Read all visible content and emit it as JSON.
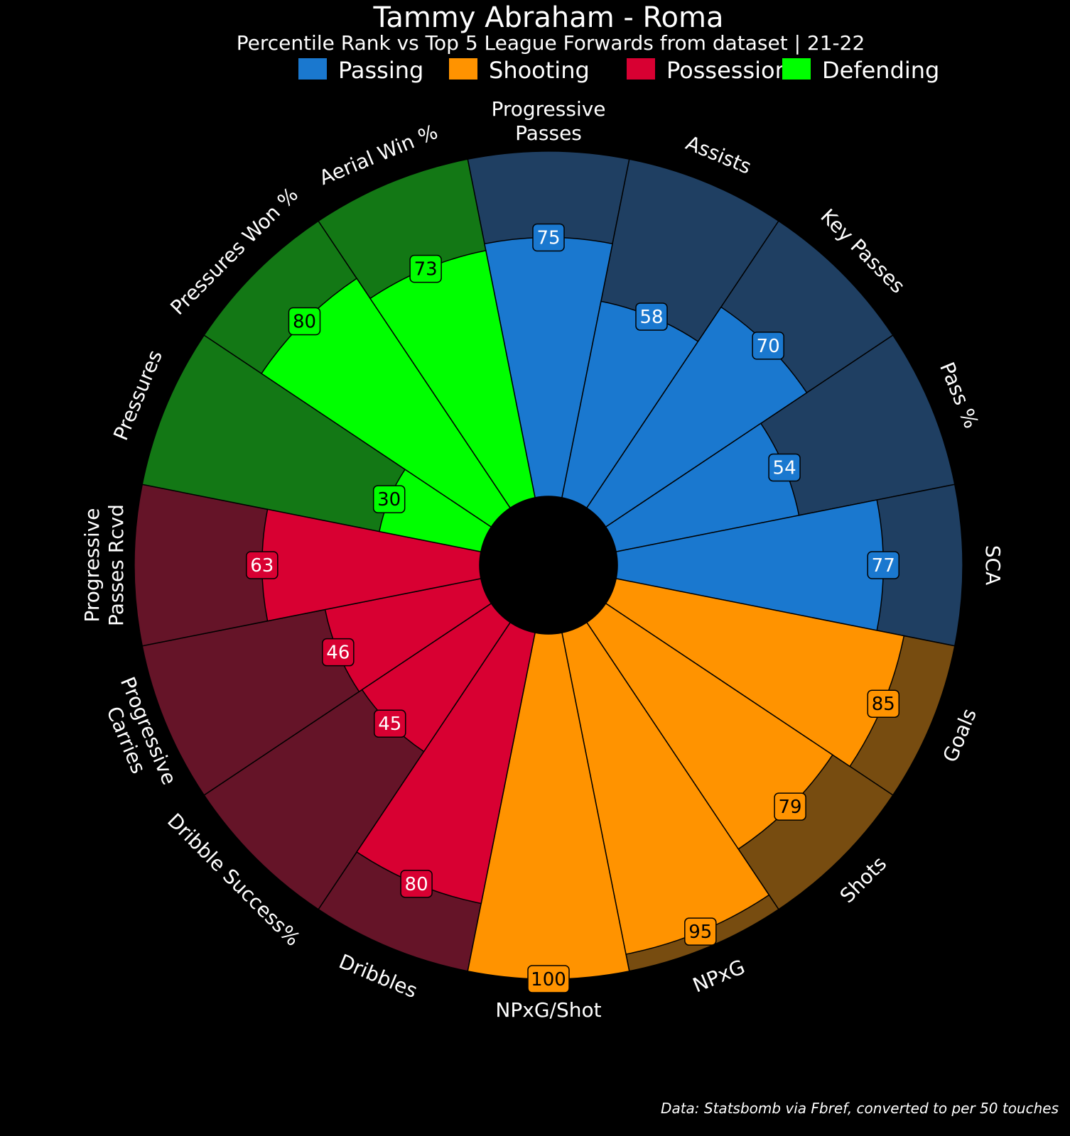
{
  "chart_data": {
    "type": "polar-bar",
    "title": "Tammy Abraham - Roma",
    "subtitle": "Percentile Rank vs Top 5 League Forwards from dataset | 21-22",
    "caption": "Data: Statsbomb via Fbref, converted to per 50 touches",
    "rlim": [
      0,
      100
    ],
    "groups": [
      {
        "name": "Passing",
        "color": "#1a78cf",
        "bg_color": "#1f3f62",
        "text_color": "#ffffff"
      },
      {
        "name": "Shooting",
        "color": "#ff9300",
        "bg_color": "#774c10",
        "text_color": "#000000"
      },
      {
        "name": "Possession",
        "color": "#d80032",
        "bg_color": "#651428",
        "text_color": "#ffffff"
      },
      {
        "name": "Defending",
        "color": "#00ff00",
        "bg_color": "#137815",
        "text_color": "#000000"
      }
    ],
    "metrics": [
      {
        "label": [
          "Progressive",
          "Passes"
        ],
        "value": 75,
        "group": 0
      },
      {
        "label": [
          "Assists"
        ],
        "value": 58,
        "group": 0
      },
      {
        "label": [
          "Key Passes"
        ],
        "value": 70,
        "group": 0
      },
      {
        "label": [
          "Pass %"
        ],
        "value": 54,
        "group": 0
      },
      {
        "label": [
          "SCA"
        ],
        "value": 77,
        "group": 0
      },
      {
        "label": [
          "Goals"
        ],
        "value": 85,
        "group": 1
      },
      {
        "label": [
          "Shots"
        ],
        "value": 79,
        "group": 1
      },
      {
        "label": [
          "NPxG"
        ],
        "value": 95,
        "group": 1
      },
      {
        "label": [
          "NPxG/Shot"
        ],
        "value": 100,
        "group": 1
      },
      {
        "label": [
          "Dribbles"
        ],
        "value": 80,
        "group": 2
      },
      {
        "label": [
          "Dribble Success%"
        ],
        "value": 45,
        "group": 2
      },
      {
        "label": [
          "Progressive",
          "Carries"
        ],
        "value": 46,
        "group": 2
      },
      {
        "label": [
          "Progressive",
          "Passes Rcvd"
        ],
        "value": 63,
        "group": 2
      },
      {
        "label": [
          "Pressures"
        ],
        "value": 30,
        "group": 3
      },
      {
        "label": [
          "Pressures Won %"
        ],
        "value": 80,
        "group": 3
      },
      {
        "label": [
          "Aerial Win %"
        ],
        "value": 73,
        "group": 3
      }
    ]
  }
}
